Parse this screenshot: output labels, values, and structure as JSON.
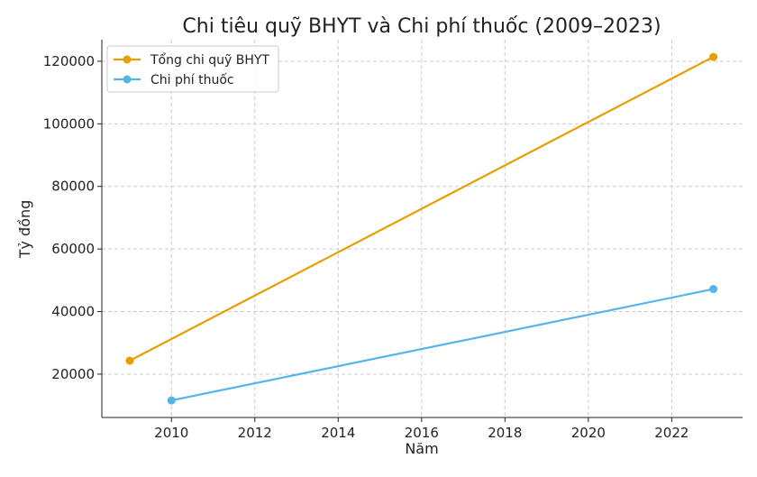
{
  "chart_data": {
    "type": "line",
    "title": "Chi tiêu quỹ BHYT và Chi phí thuốc (2009–2023)",
    "xlabel": "Năm",
    "ylabel": "Tỷ đồng",
    "xlim": [
      2008.33,
      2023.7
    ],
    "ylim": [
      6150,
      126900
    ],
    "xticks": [
      2010,
      2012,
      2014,
      2016,
      2018,
      2020,
      2022
    ],
    "yticks": [
      20000,
      40000,
      60000,
      80000,
      100000,
      120000
    ],
    "grid": true,
    "legend_position": "top-left",
    "series": [
      {
        "name": "Tổng chi quỹ BHYT",
        "color": "#E69F00",
        "x": [
          2009,
          2023
        ],
        "y": [
          24300,
          121400
        ]
      },
      {
        "name": "Chi phí thuốc",
        "color": "#56B4E9",
        "x": [
          2010,
          2023
        ],
        "y": [
          11600,
          47200
        ]
      }
    ]
  }
}
